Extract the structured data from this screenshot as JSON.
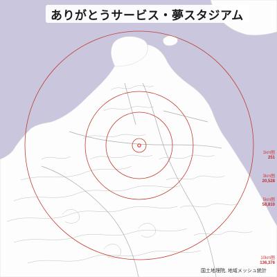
{
  "title": "ありがとうサービス・夢スタジアム",
  "rings": [
    {
      "label": "1km圏",
      "population": "251"
    },
    {
      "label": "3km圏",
      "population": "20,528"
    },
    {
      "label": "5km圏",
      "population": "58,810"
    },
    {
      "label": "10km圏",
      "population": "136,376"
    }
  ],
  "attribution": "国土地理院, 地域メッシュ統計",
  "colors": {
    "sea": "#c9c6dd",
    "land": "#fdfdfd",
    "ring": "#c0392b",
    "center": "#e03030"
  }
}
